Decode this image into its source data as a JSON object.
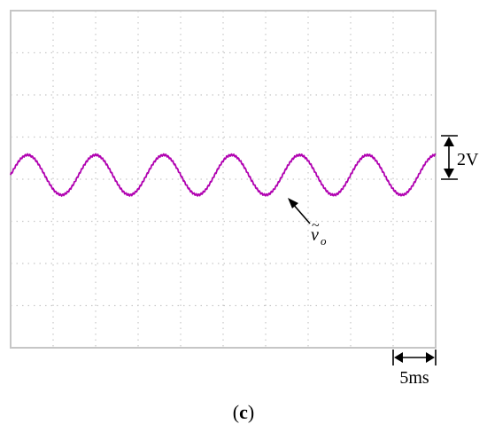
{
  "chart_data": {
    "type": "line",
    "title": "",
    "xlabel": "",
    "ylabel": "",
    "grid": true,
    "divisions": {
      "x": 10,
      "y": 8
    },
    "xlim": [
      0,
      50
    ],
    "ylim": [
      -8,
      8
    ],
    "x_unit": "ms",
    "y_unit": "V",
    "series": [
      {
        "name": "",
        "color": "#b000b0",
        "waveform": "sine",
        "frequency_hz": 125,
        "amplitude": 0.95,
        "offset": 0.2,
        "phase_deg": 0
      }
    ],
    "annotations": {
      "trace_label": {
        "base": "v",
        "accent": "~",
        "subscript": "o"
      },
      "vertical_scale": {
        "value": "2V",
        "divisions": 1
      },
      "horizontal_scale": {
        "value": "5ms",
        "divisions": 1
      }
    }
  },
  "caption": {
    "open": "(",
    "letter": "c",
    "close": ")"
  }
}
